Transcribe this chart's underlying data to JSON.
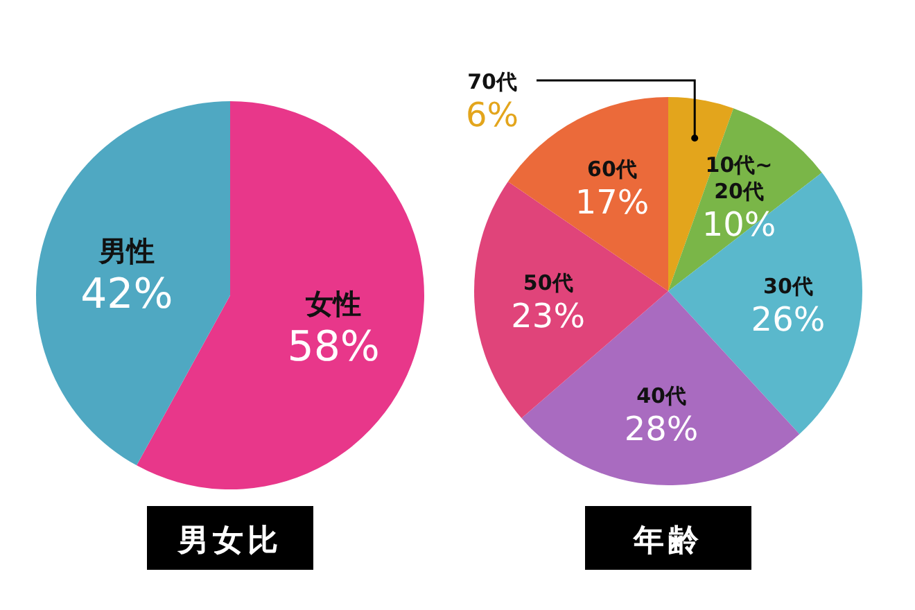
{
  "chart_data": [
    {
      "type": "pie",
      "title": "男女比",
      "categories": [
        "女性",
        "男性"
      ],
      "values": [
        58,
        42
      ],
      "colors": [
        "#e8378a",
        "#4fa8c2"
      ],
      "value_labels": [
        "58%",
        "42%"
      ],
      "legend": false
    },
    {
      "type": "pie",
      "title": "年齢",
      "categories": [
        "70代",
        "10代~20代",
        "30代",
        "40代",
        "50代",
        "60代"
      ],
      "values": [
        6,
        10,
        26,
        28,
        23,
        17
      ],
      "colors": [
        "#e3a51c",
        "#7ab648",
        "#5ab8cc",
        "#a96bc0",
        "#e0447a",
        "#eb6a3a"
      ],
      "value_labels": [
        "6%",
        "10%",
        "26%",
        "28%",
        "23%",
        "17%"
      ],
      "legend": false
    }
  ]
}
